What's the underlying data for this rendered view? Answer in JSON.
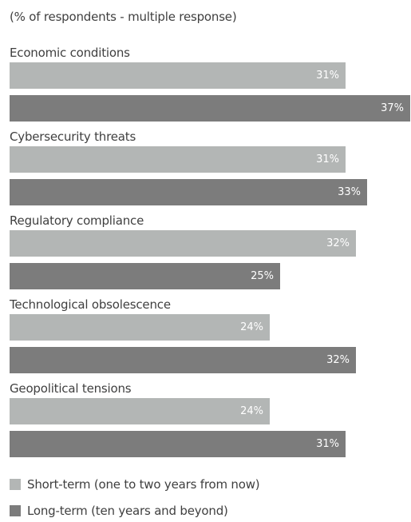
{
  "chart_data": {
    "type": "bar",
    "orientation": "horizontal",
    "title": "",
    "subtitle": "(% of respondents - multiple response)",
    "xlim": [
      0,
      37
    ],
    "grid": false,
    "legend_placement": "bottom",
    "categories": [
      "Economic conditions",
      "Cybersecurity threats",
      "Regulatory compliance",
      "Technological obsolescence",
      "Geopolitical tensions"
    ],
    "series": [
      {
        "name": "Short-term (one to two years from now)",
        "color": "#b3b6b5",
        "values": [
          31,
          31,
          32,
          24,
          24
        ]
      },
      {
        "name": "Long-term (ten years and beyond)",
        "color": "#7c7c7c",
        "values": [
          37,
          33,
          25,
          32,
          31
        ]
      }
    ],
    "value_suffix": "%"
  }
}
